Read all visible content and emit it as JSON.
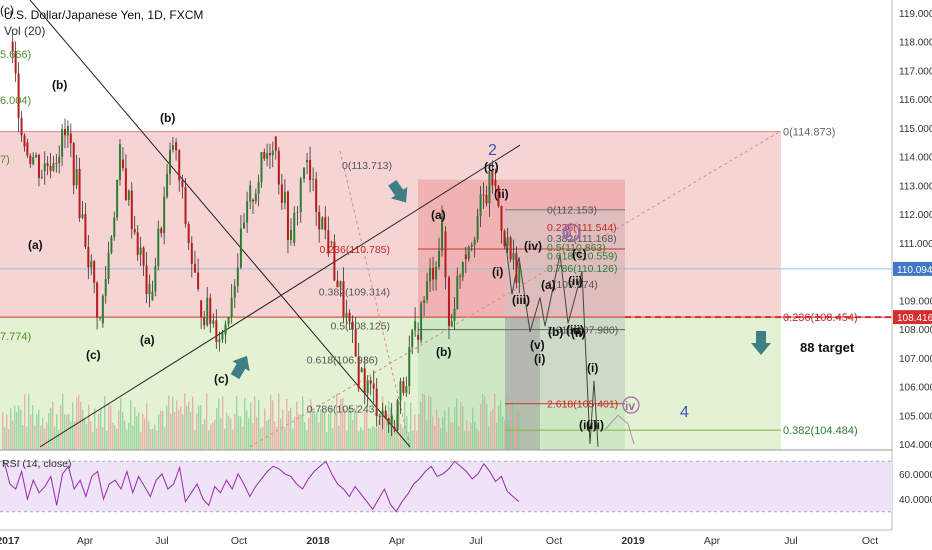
{
  "header": {
    "title": "U.S. Dollar/Japanese Yen, 1D, FXCM",
    "volume": "Vol (20)"
  },
  "colors": {
    "upper_box": "#f4cccc",
    "lower_box": "#dcefc8",
    "fib_box_red": "#e57373",
    "fib_box_green": "#a5d6a7",
    "volume_bar": "#e89a9a",
    "volume_bar_up": "#7fc98a",
    "rsi_band": "#efe3f7",
    "rsi_line": "#9c27b0",
    "teal_arrow": "#3e7f86",
    "price_tag_blue": "#3f78c4",
    "price_tag_red": "#d32f2f"
  },
  "chart_data": [
    {
      "type": "candlestick",
      "title": "U.S. Dollar/Japanese Yen, 1D, FXCM",
      "x_range": [
        "2017-01",
        "2019-11"
      ],
      "ylim": [
        103.8,
        119.3
      ],
      "y_ticks": [
        "119.000",
        "118.000",
        "117.000",
        "116.000",
        "115.000",
        "114.000",
        "113.000",
        "112.000",
        "111.000",
        "110.000",
        "109.000",
        "108.000",
        "107.000",
        "106.000",
        "105.000",
        "104.000"
      ],
      "x_ticks": [
        "2017",
        "Apr",
        "Jul",
        "Oct",
        "2018",
        "Apr",
        "Jul",
        "Oct",
        "2019",
        "Apr",
        "Jul",
        "Oct"
      ],
      "price_path_approx": {
        "dates": [
          "2017-01-03",
          "2017-01-20",
          "2017-02-10",
          "2017-03-10",
          "2017-04-17",
          "2017-05-10",
          "2017-06-14",
          "2017-07-11",
          "2017-08-10",
          "2017-09-08",
          "2017-10-10",
          "2017-11-06",
          "2017-11-27",
          "2017-12-12",
          "2018-01-10",
          "2018-02-15",
          "2018-03-23",
          "2018-04-20",
          "2018-05-21",
          "2018-05-29",
          "2018-06-15",
          "2018-07-19",
          "2018-08-10",
          "2018-08-20"
        ],
        "close": [
          118.0,
          114.5,
          113.5,
          114.8,
          108.2,
          113.9,
          109.0,
          114.5,
          109.0,
          107.8,
          112.5,
          114.7,
          111.0,
          113.8,
          111.0,
          106.5,
          104.6,
          107.8,
          111.4,
          108.1,
          110.6,
          113.2,
          110.4,
          110.1
        ]
      },
      "current_price": "110.094",
      "level_line_price": "108.416",
      "fib_levels_left": [
        {
          "label": "0(113.713)"
        },
        {
          "label": "0.236(110.785)"
        },
        {
          "label": "0.382(109.314)"
        },
        {
          "label": "0.5(108.125)"
        },
        {
          "label": "0.618(106.936)"
        },
        {
          "label": "0.786(105.243)"
        }
      ],
      "fib_levels_right": [
        {
          "label": "0(112.153)"
        },
        {
          "label": "0.236(111.544)"
        },
        {
          "label": "0.382(111.168)"
        },
        {
          "label": "0.5(110.863)"
        },
        {
          "label": "0.618(110.559)"
        },
        {
          "label": "0.786(110.126)"
        },
        {
          "label": "1(109.574)"
        },
        {
          "label": "1.618(107.980)"
        },
        {
          "label": "2.618(105.401)"
        }
      ],
      "projection_levels": [
        {
          "label": "0(114.873)"
        },
        {
          "label": "0.236(108.454)"
        },
        {
          "label": "0.382(104.484)"
        }
      ],
      "left_edge_labels": [
        "(c)",
        "5.666)",
        "6.004)",
        "7)",
        "7.774)"
      ],
      "wave_labels": [
        "(b)",
        "(b)",
        "(a)",
        "(a)",
        "(c)",
        "(c)",
        "(a)",
        "(b)",
        "(c)",
        "2",
        "(ii)",
        "(iv)",
        "(i)",
        "(iii)",
        "(a)",
        "(b)",
        "(c)",
        "(v)",
        "(i)",
        "i",
        "(ii)",
        "(iii)",
        "(iv)",
        "(i)",
        "(ii)",
        "ii",
        "(iii)",
        "iv",
        "4",
        "88 target"
      ]
    },
    {
      "type": "line",
      "title": "RSI (14, close)",
      "ylim": [
        25,
        75
      ],
      "y_ticks": [
        "60.0000",
        "40.0000"
      ],
      "bands": [
        70,
        30
      ],
      "values": [
        70,
        52,
        48,
        62,
        40,
        55,
        45,
        50,
        58,
        35,
        60,
        66,
        48,
        55,
        42,
        58,
        62,
        40,
        52,
        55,
        48,
        62,
        45,
        58,
        50,
        42,
        55,
        60,
        48,
        52,
        65,
        38,
        45,
        52,
        40,
        35,
        50,
        45,
        55,
        48,
        60,
        52,
        42,
        50,
        56,
        62,
        66,
        64,
        60,
        58,
        52,
        48,
        56,
        62,
        66,
        70,
        60,
        52,
        48,
        42,
        50,
        44,
        38,
        32,
        40,
        48,
        36,
        30,
        38,
        44,
        52,
        56,
        62,
        66,
        58,
        60,
        64,
        70,
        66,
        62,
        56,
        60,
        68,
        62,
        54,
        58,
        46,
        42,
        38
      ]
    }
  ]
}
